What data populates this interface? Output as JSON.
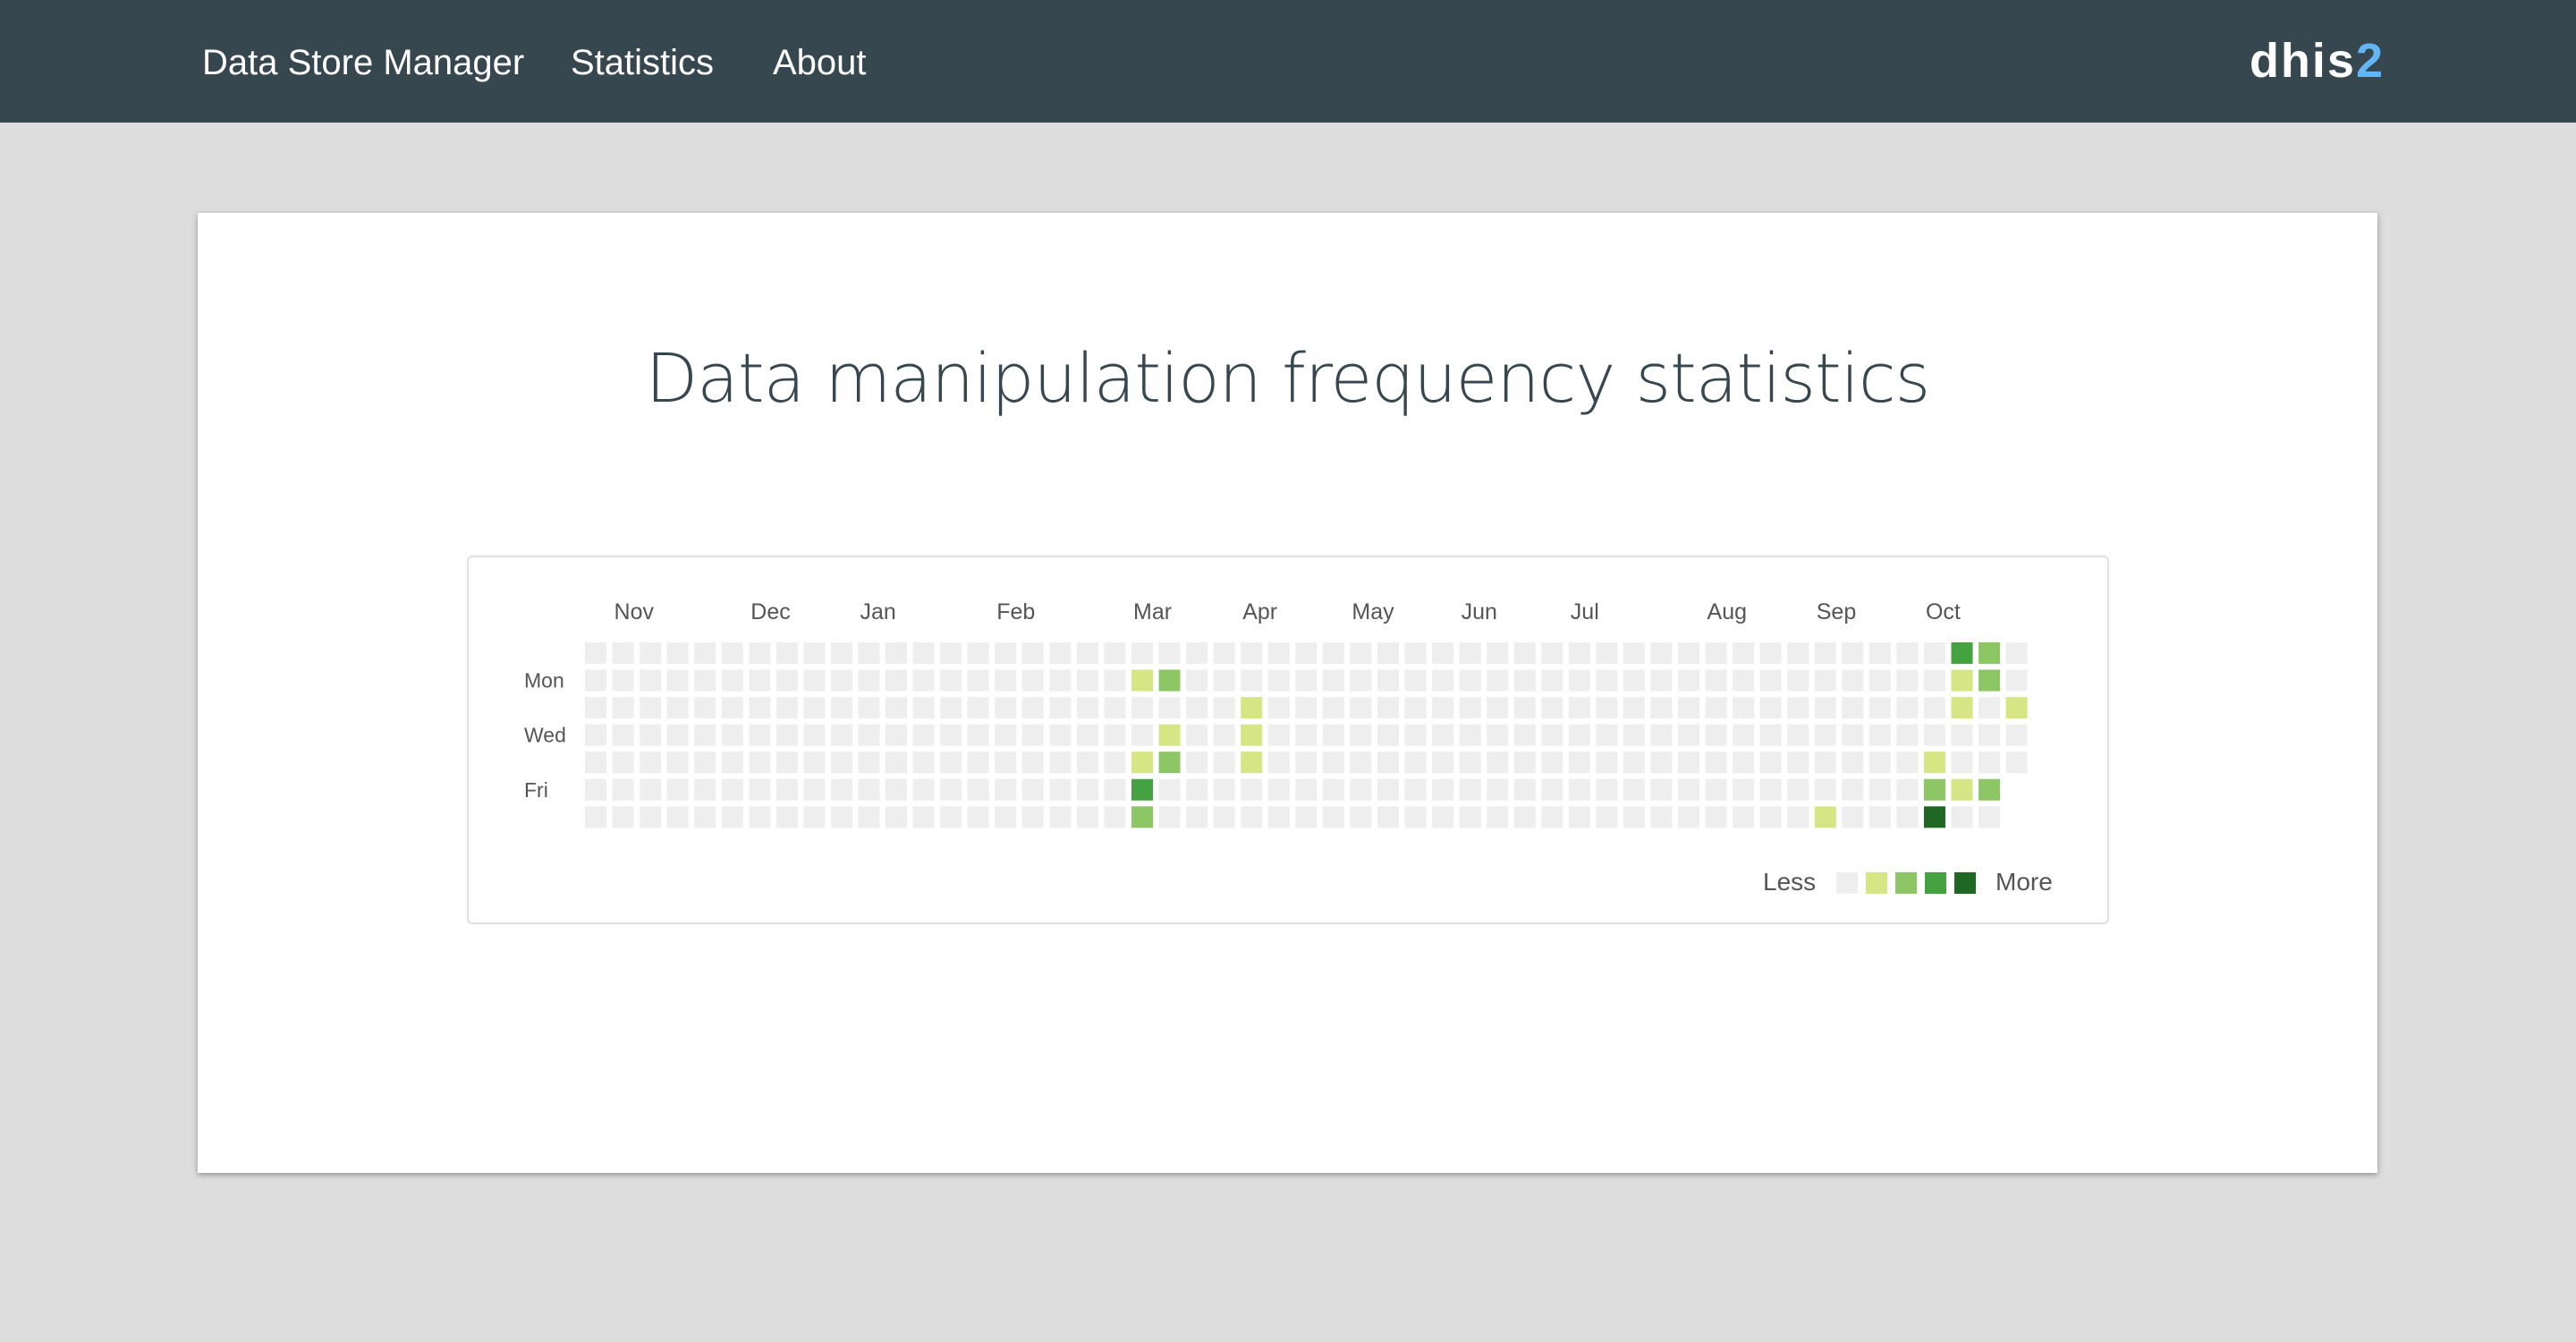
{
  "nav": {
    "items": [
      {
        "label": "Data Store Manager",
        "name": "nav-data-store-manager"
      },
      {
        "label": "Statistics",
        "name": "nav-statistics"
      },
      {
        "label": "About",
        "name": "nav-about"
      }
    ],
    "brand_text": "dhis",
    "brand_num": "2"
  },
  "page": {
    "title": "Data manipulation frequency statistics"
  },
  "chart_data": {
    "type": "heatmap",
    "months": [
      "Nov",
      "Dec",
      "Jan",
      "Feb",
      "Mar",
      "Apr",
      "May",
      "Jun",
      "Jul",
      "Aug",
      "Sep",
      "Oct"
    ],
    "month_week_index": [
      1,
      6,
      10,
      15,
      20,
      24,
      28,
      32,
      36,
      41,
      45,
      49
    ],
    "day_labels": [
      {
        "row": 1,
        "label": "Mon"
      },
      {
        "row": 3,
        "label": "Wed"
      },
      {
        "row": 5,
        "label": "Fri"
      }
    ],
    "weeks": 53,
    "last_week_days": 5,
    "cells": [
      {
        "week": 20,
        "day": 1,
        "level": 1
      },
      {
        "week": 21,
        "day": 1,
        "level": 2
      },
      {
        "week": 21,
        "day": 3,
        "level": 1
      },
      {
        "week": 20,
        "day": 4,
        "level": 1
      },
      {
        "week": 21,
        "day": 4,
        "level": 2
      },
      {
        "week": 20,
        "day": 5,
        "level": 3
      },
      {
        "week": 20,
        "day": 6,
        "level": 2
      },
      {
        "week": 24,
        "day": 2,
        "level": 1
      },
      {
        "week": 24,
        "day": 3,
        "level": 1
      },
      {
        "week": 24,
        "day": 4,
        "level": 1
      },
      {
        "week": 45,
        "day": 6,
        "level": 1
      },
      {
        "week": 49,
        "day": 4,
        "level": 1
      },
      {
        "week": 49,
        "day": 5,
        "level": 2
      },
      {
        "week": 49,
        "day": 6,
        "level": 4
      },
      {
        "week": 50,
        "day": 0,
        "level": 3
      },
      {
        "week": 50,
        "day": 1,
        "level": 1
      },
      {
        "week": 50,
        "day": 2,
        "level": 1
      },
      {
        "week": 50,
        "day": 5,
        "level": 1
      },
      {
        "week": 51,
        "day": 0,
        "level": 2
      },
      {
        "week": 51,
        "day": 1,
        "level": 2
      },
      {
        "week": 51,
        "day": 5,
        "level": 2
      },
      {
        "week": 52,
        "day": 2,
        "level": 1
      }
    ],
    "legend": {
      "less": "Less",
      "more": "More",
      "colors": [
        "#eeeeee",
        "#d6e685",
        "#8cc665",
        "#44a340",
        "#1e6823"
      ]
    },
    "empty_color": "#eeeeee"
  }
}
